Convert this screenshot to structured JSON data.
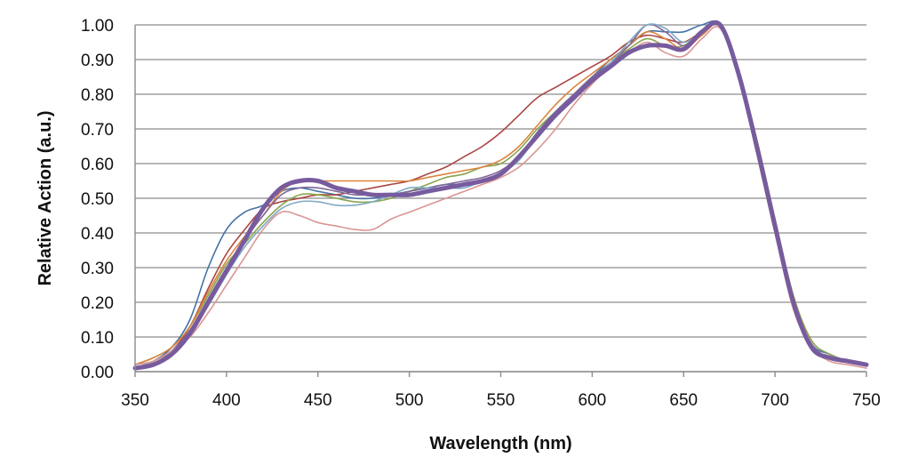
{
  "chart_data": {
    "type": "line",
    "title": "",
    "xlabel": "Wavelength (nm)",
    "ylabel": "Relative Action (a.u.)",
    "xlim": [
      350,
      750
    ],
    "ylim": [
      0,
      1
    ],
    "grid": "horizontal",
    "x_ticks": [
      "350",
      "400",
      "450",
      "500",
      "550",
      "600",
      "650",
      "700",
      "750"
    ],
    "y_ticks": [
      "0.00",
      "0.10",
      "0.20",
      "0.30",
      "0.40",
      "0.50",
      "0.60",
      "0.70",
      "0.80",
      "0.90",
      "1.00"
    ],
    "x": [
      350,
      360,
      370,
      380,
      390,
      400,
      410,
      420,
      430,
      440,
      450,
      460,
      470,
      480,
      490,
      500,
      510,
      520,
      530,
      540,
      550,
      560,
      570,
      580,
      590,
      600,
      610,
      620,
      630,
      640,
      650,
      660,
      670,
      680,
      690,
      700,
      710,
      720,
      730,
      740,
      750
    ],
    "series": [
      {
        "color": "#4572a7",
        "width": 1.6,
        "values": [
          0.01,
          0.03,
          0.07,
          0.15,
          0.3,
          0.41,
          0.46,
          0.48,
          0.52,
          0.53,
          0.52,
          0.51,
          0.5,
          0.5,
          0.51,
          0.52,
          0.53,
          0.54,
          0.54,
          0.55,
          0.57,
          0.62,
          0.69,
          0.75,
          0.8,
          0.85,
          0.9,
          0.94,
          0.98,
          0.98,
          0.98,
          1.0,
          1.0,
          0.86,
          0.65,
          0.42,
          0.2,
          0.08,
          0.05,
          0.03,
          0.02
        ]
      },
      {
        "color": "#aa4643",
        "width": 1.6,
        "values": [
          0.01,
          0.03,
          0.06,
          0.13,
          0.24,
          0.34,
          0.41,
          0.47,
          0.49,
          0.5,
          0.51,
          0.51,
          0.52,
          0.53,
          0.54,
          0.55,
          0.57,
          0.59,
          0.62,
          0.65,
          0.69,
          0.74,
          0.79,
          0.82,
          0.85,
          0.88,
          0.91,
          0.95,
          0.97,
          0.96,
          0.95,
          0.98,
          1.0,
          0.85,
          0.63,
          0.4,
          0.19,
          0.07,
          0.04,
          0.03,
          0.02
        ]
      },
      {
        "color": "#89a54e",
        "width": 1.6,
        "values": [
          0.02,
          0.04,
          0.07,
          0.13,
          0.22,
          0.31,
          0.37,
          0.43,
          0.48,
          0.51,
          0.51,
          0.5,
          0.49,
          0.49,
          0.5,
          0.52,
          0.54,
          0.56,
          0.57,
          0.59,
          0.6,
          0.64,
          0.7,
          0.75,
          0.8,
          0.85,
          0.89,
          0.93,
          0.96,
          0.94,
          0.94,
          0.98,
          1.0,
          0.87,
          0.67,
          0.44,
          0.22,
          0.09,
          0.05,
          0.03,
          0.02
        ]
      },
      {
        "color": "#db843d",
        "width": 1.6,
        "values": [
          0.02,
          0.04,
          0.07,
          0.13,
          0.23,
          0.32,
          0.39,
          0.45,
          0.52,
          0.55,
          0.55,
          0.55,
          0.55,
          0.55,
          0.55,
          0.55,
          0.56,
          0.57,
          0.58,
          0.59,
          0.61,
          0.65,
          0.71,
          0.77,
          0.82,
          0.86,
          0.9,
          0.94,
          0.98,
          0.96,
          0.93,
          0.97,
          1.0,
          0.87,
          0.66,
          0.43,
          0.21,
          0.08,
          0.04,
          0.03,
          0.02
        ]
      },
      {
        "color": "#80699b",
        "width": 1.6,
        "values": [
          0.01,
          0.03,
          0.06,
          0.12,
          0.21,
          0.3,
          0.38,
          0.45,
          0.51,
          0.53,
          0.53,
          0.52,
          0.51,
          0.51,
          0.51,
          0.52,
          0.53,
          0.54,
          0.55,
          0.56,
          0.58,
          0.62,
          0.69,
          0.75,
          0.8,
          0.85,
          0.89,
          0.94,
          1.0,
          0.98,
          0.94,
          0.98,
          1.0,
          0.86,
          0.65,
          0.42,
          0.2,
          0.08,
          0.04,
          0.03,
          0.02
        ]
      },
      {
        "color": "#80a9c4",
        "width": 1.6,
        "values": [
          0.01,
          0.03,
          0.06,
          0.11,
          0.19,
          0.28,
          0.36,
          0.42,
          0.47,
          0.49,
          0.49,
          0.48,
          0.48,
          0.49,
          0.51,
          0.53,
          0.53,
          0.53,
          0.53,
          0.55,
          0.57,
          0.61,
          0.68,
          0.74,
          0.79,
          0.84,
          0.89,
          0.95,
          1.0,
          0.99,
          0.95,
          0.98,
          1.0,
          0.85,
          0.63,
          0.4,
          0.19,
          0.07,
          0.04,
          0.03,
          0.02
        ]
      },
      {
        "color": "#d99694",
        "width": 1.6,
        "values": [
          0.02,
          0.03,
          0.06,
          0.1,
          0.17,
          0.25,
          0.33,
          0.41,
          0.46,
          0.45,
          0.43,
          0.42,
          0.41,
          0.41,
          0.44,
          0.46,
          0.48,
          0.5,
          0.52,
          0.54,
          0.56,
          0.59,
          0.64,
          0.7,
          0.77,
          0.83,
          0.88,
          0.92,
          0.95,
          0.92,
          0.91,
          0.96,
          0.99,
          0.85,
          0.63,
          0.4,
          0.18,
          0.07,
          0.03,
          0.02,
          0.01
        ]
      },
      {
        "color": "#775b9e",
        "width": 5,
        "values": [
          0.01,
          0.02,
          0.05,
          0.11,
          0.2,
          0.29,
          0.38,
          0.47,
          0.53,
          0.55,
          0.55,
          0.53,
          0.52,
          0.51,
          0.51,
          0.51,
          0.52,
          0.53,
          0.54,
          0.55,
          0.57,
          0.62,
          0.68,
          0.74,
          0.79,
          0.84,
          0.88,
          0.92,
          0.94,
          0.94,
          0.93,
          0.98,
          1.0,
          0.86,
          0.65,
          0.42,
          0.2,
          0.07,
          0.04,
          0.03,
          0.02
        ]
      }
    ]
  }
}
